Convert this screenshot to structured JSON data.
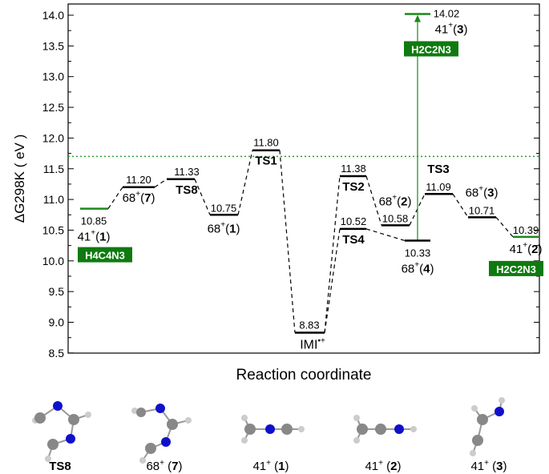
{
  "chart_data": {
    "type": "energy-level-diagram",
    "xlabel": "Reaction coordinate",
    "ylabel": "ΔG298K ( eV )",
    "ylabel_main": "ΔG",
    "ylabel_sub": "298K",
    "ylabel_unit": "( eV )",
    "ylim": [
      8.5,
      14.1
    ],
    "yticks": [
      "8.5",
      "9.0",
      "9.5",
      "10.0",
      "10.5",
      "11.0",
      "11.5",
      "12.0",
      "12.5",
      "13.0",
      "13.5",
      "14.0"
    ],
    "reference_line": {
      "value": 11.7,
      "style": "dotted",
      "color": "#2ca02c"
    },
    "levels": [
      {
        "id": "41+(1)",
        "main": "41",
        "sup": "+",
        "num": "1",
        "value": 10.85,
        "value_label": "10.85",
        "color": "#1a8a1a",
        "formula": "H4C4N3"
      },
      {
        "id": "68+(7)",
        "main": "68",
        "sup": "+",
        "num": "7",
        "value": 11.2,
        "value_label": "11.20",
        "color": "#000000"
      },
      {
        "id": "TS8",
        "main": "TS8",
        "value": 11.33,
        "value_label": "11.33",
        "color": "#000000"
      },
      {
        "id": "68+(1)",
        "main": "68",
        "sup": "+",
        "num": "1",
        "value": 10.75,
        "value_label": "10.75",
        "color": "#000000"
      },
      {
        "id": "TS1",
        "main": "TS1",
        "value": 11.8,
        "value_label": "11.80",
        "color": "#000000"
      },
      {
        "id": "IMI",
        "main": "IMI",
        "sup": "•+",
        "value": 8.83,
        "value_label": "8.83",
        "color": "#000000"
      },
      {
        "id": "TS2",
        "main": "TS2",
        "value": 11.38,
        "value_label": "11.38",
        "color": "#000000"
      },
      {
        "id": "TS4",
        "main": "TS4",
        "value": 10.52,
        "value_label": "10.52",
        "color": "#000000"
      },
      {
        "id": "68+(2)",
        "main": "68",
        "sup": "+",
        "num": "2",
        "value": 10.58,
        "value_label": "10.58",
        "color": "#000000"
      },
      {
        "id": "68+(4)",
        "main": "68",
        "sup": "+",
        "num": "4",
        "value": 10.33,
        "value_label": "10.33",
        "color": "#000000"
      },
      {
        "id": "TS3",
        "main": "TS3",
        "value": 11.09,
        "value_label": "11.09",
        "color": "#000000"
      },
      {
        "id": "68+(3)",
        "main": "68",
        "sup": "+",
        "num": "3",
        "value": 10.71,
        "value_label": "10.71",
        "color": "#000000"
      },
      {
        "id": "41+(2)",
        "main": "41",
        "sup": "+",
        "num": "2",
        "value": 10.39,
        "value_label": "10.39",
        "color": "#1a8a1a",
        "formula": "H2C2N3"
      },
      {
        "id": "41+(3)",
        "main": "41",
        "sup": "+",
        "num": "3",
        "value": 14.02,
        "value_label": "14.02",
        "color": "#1a8a1a",
        "formula": "H2C2N3"
      }
    ],
    "connections": [
      [
        0,
        1
      ],
      [
        1,
        2
      ],
      [
        2,
        3
      ],
      [
        3,
        4
      ],
      [
        4,
        5
      ],
      [
        5,
        6
      ],
      [
        5,
        7
      ],
      [
        6,
        8
      ],
      [
        8,
        10
      ],
      [
        10,
        11
      ],
      [
        11,
        12
      ],
      [
        7,
        9
      ]
    ],
    "arrow": {
      "from": 9,
      "to": 13,
      "color": "#1a8a1a"
    }
  },
  "structures": [
    {
      "label": "TS8"
    },
    {
      "label_main": "68",
      "label_sup": "+",
      "label_num": "7"
    },
    {
      "label_main": "41",
      "label_sup": "+",
      "label_num": "1"
    },
    {
      "label_main": "41",
      "label_sup": "+",
      "label_num": "2"
    },
    {
      "label_main": "41",
      "label_sup": "+",
      "label_num": "3"
    }
  ],
  "colors": {
    "green": "#1a8a1a",
    "badge": "#0f7a0f",
    "dotted": "#2ca02c"
  }
}
